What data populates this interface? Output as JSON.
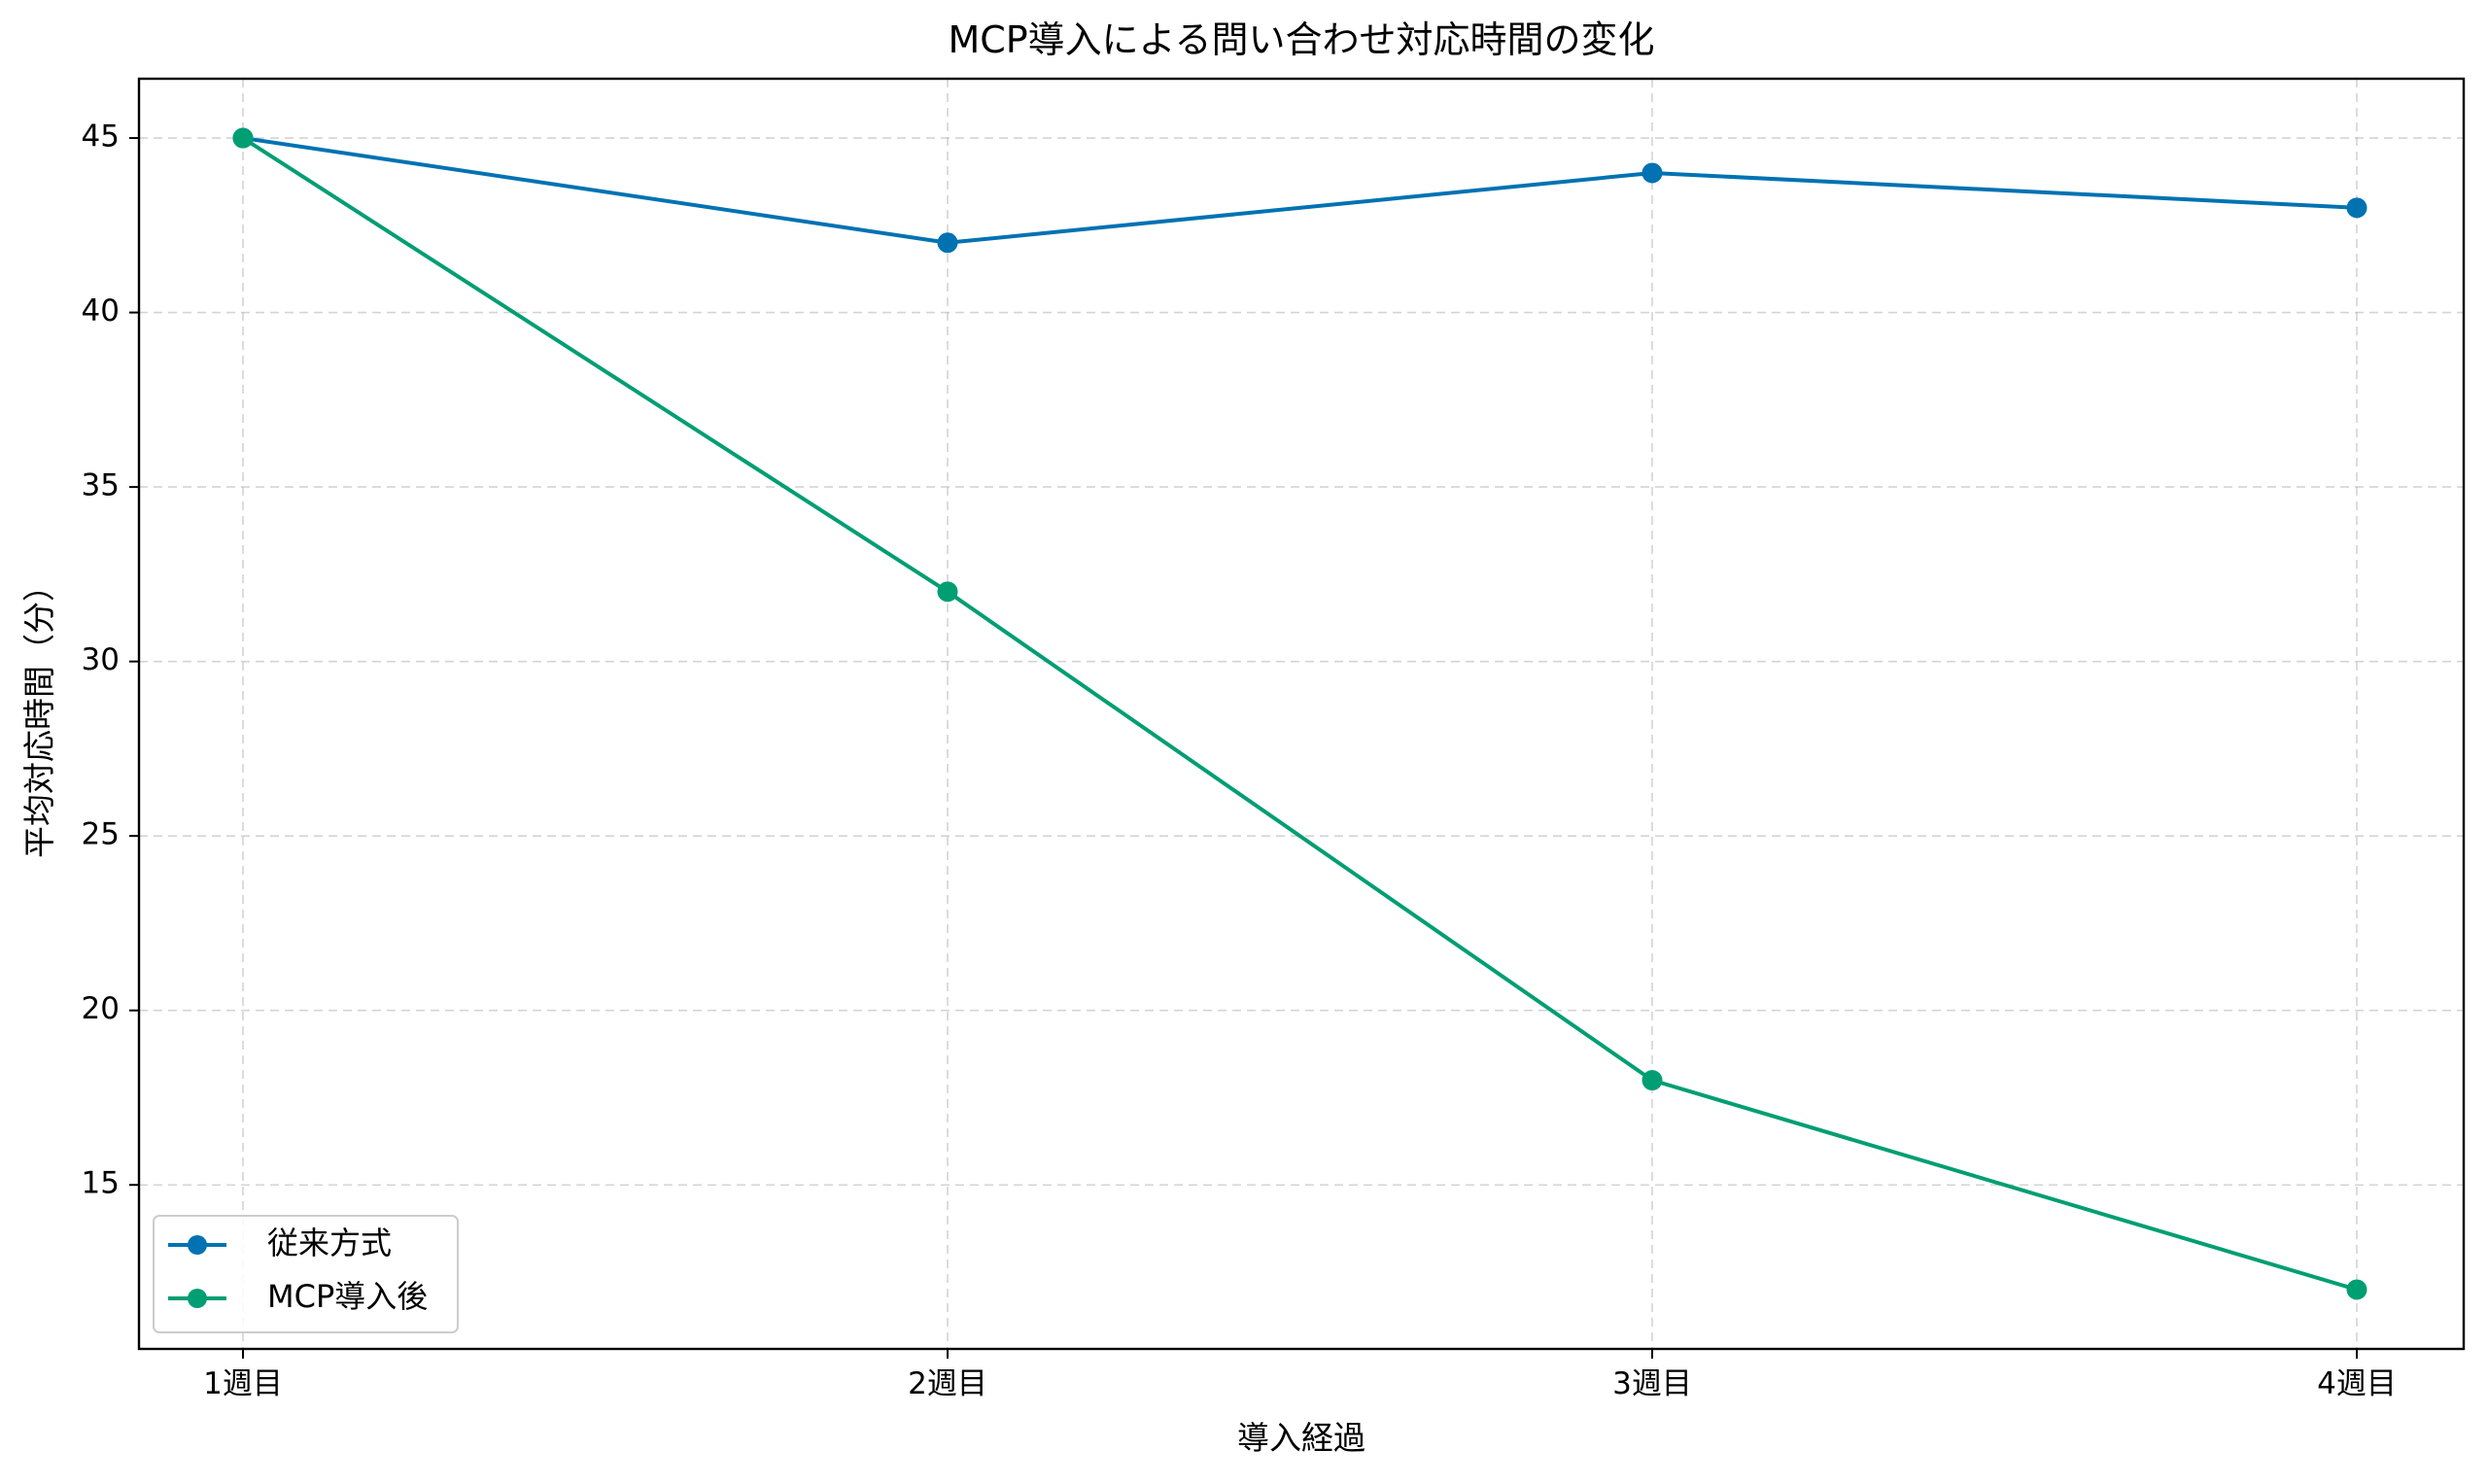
{
  "chart_data": {
    "type": "line",
    "title": "MCP導入による問い合わせ対応時間の変化",
    "xlabel": "導入経過",
    "ylabel": "平均対応時間（分）",
    "categories": [
      "1週目",
      "2週目",
      "3週目",
      "4週目"
    ],
    "ylim": [
      10.3,
      46.7
    ],
    "yticks": [
      15,
      20,
      25,
      30,
      35,
      40,
      45
    ],
    "grid": true,
    "legend_position": "lower-left",
    "series": [
      {
        "name": "従来方式",
        "color": "#0072b2",
        "marker": "circle",
        "values": [
          45,
          42,
          44,
          43
        ]
      },
      {
        "name": "MCP導入後",
        "color": "#009e73",
        "marker": "circle",
        "values": [
          45,
          32,
          18,
          12
        ]
      }
    ]
  }
}
